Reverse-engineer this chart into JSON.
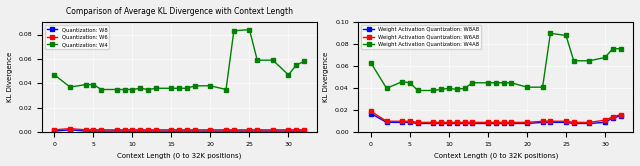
{
  "title_left": "Comparison of Average KL Divergence with Context Length",
  "xlabel": "Context Length (0 to 32K positions)",
  "ylabel": "KL Divergence",
  "x": [
    0,
    2,
    4,
    5,
    6,
    8,
    9,
    10,
    11,
    12,
    13,
    15,
    16,
    17,
    18,
    20,
    22,
    23,
    25,
    26,
    28,
    30,
    31,
    32
  ],
  "left_W8": [
    0.001,
    0.002,
    0.001,
    0.001,
    0.001,
    0.001,
    0.001,
    0.001,
    0.001,
    0.001,
    0.001,
    0.001,
    0.001,
    0.001,
    0.001,
    0.001,
    0.001,
    0.001,
    0.001,
    0.001,
    0.001,
    0.001,
    0.001,
    0.001
  ],
  "left_W6": [
    0.002,
    0.003,
    0.002,
    0.002,
    0.002,
    0.002,
    0.002,
    0.002,
    0.002,
    0.002,
    0.002,
    0.002,
    0.002,
    0.002,
    0.002,
    0.002,
    0.002,
    0.002,
    0.002,
    0.002,
    0.002,
    0.002,
    0.002,
    0.002
  ],
  "left_W4": [
    0.047,
    0.037,
    0.039,
    0.039,
    0.035,
    0.035,
    0.035,
    0.035,
    0.036,
    0.035,
    0.036,
    0.036,
    0.036,
    0.036,
    0.038,
    0.038,
    0.035,
    0.083,
    0.084,
    0.059,
    0.059,
    0.047,
    0.055,
    0.058
  ],
  "right_W8A8": [
    0.017,
    0.009,
    0.009,
    0.009,
    0.008,
    0.008,
    0.008,
    0.008,
    0.008,
    0.008,
    0.008,
    0.008,
    0.008,
    0.008,
    0.008,
    0.008,
    0.009,
    0.009,
    0.009,
    0.008,
    0.008,
    0.009,
    0.013,
    0.015
  ],
  "right_W6A8": [
    0.019,
    0.01,
    0.01,
    0.01,
    0.009,
    0.009,
    0.009,
    0.009,
    0.009,
    0.009,
    0.009,
    0.009,
    0.009,
    0.009,
    0.009,
    0.009,
    0.01,
    0.01,
    0.01,
    0.009,
    0.009,
    0.011,
    0.014,
    0.016
  ],
  "right_W4A8": [
    0.063,
    0.04,
    0.046,
    0.045,
    0.038,
    0.038,
    0.039,
    0.04,
    0.039,
    0.04,
    0.045,
    0.045,
    0.045,
    0.045,
    0.045,
    0.041,
    0.041,
    0.09,
    0.088,
    0.065,
    0.065,
    0.068,
    0.076,
    0.076
  ],
  "color_blue": "#0000ff",
  "color_red": "#ff0000",
  "color_green": "#008000",
  "left_legend": [
    "Quantization: W8",
    "Quantization: W6",
    "Quantization: W4"
  ],
  "right_legend": [
    "Weight Activation Quantization: W8A8",
    "Weight Activation Quantization: W6A8",
    "Weight Activation Quantization: W4A8"
  ],
  "left_ylim": [
    0,
    0.09
  ],
  "right_ylim": [
    0,
    0.1
  ],
  "left_yticks": [
    0.0,
    0.02,
    0.04,
    0.06,
    0.08
  ],
  "right_yticks": [
    0.0,
    0.02,
    0.04,
    0.06,
    0.08,
    0.1
  ],
  "xticks": [
    0,
    5,
    10,
    15,
    20,
    25,
    30
  ]
}
